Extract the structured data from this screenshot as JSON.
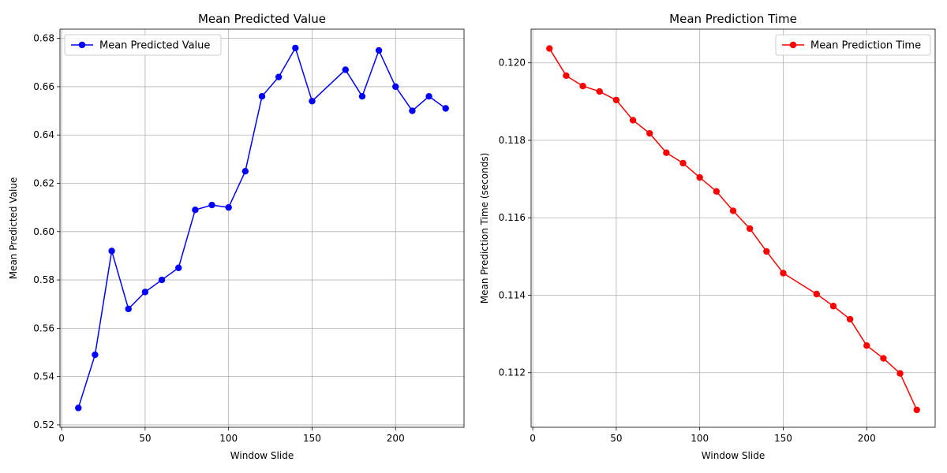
{
  "chart_data": [
    {
      "type": "line",
      "title": "Mean Predicted Value",
      "xlabel": "Window Slide",
      "ylabel": "Mean Predicted Value",
      "xlim": [
        -1,
        241
      ],
      "ylim": [
        0.519,
        0.6838
      ],
      "xticks": [
        0,
        50,
        100,
        150,
        200
      ],
      "yticks": [
        0.52,
        0.54,
        0.56,
        0.58,
        0.6,
        0.62,
        0.64,
        0.66,
        0.68
      ],
      "ytick_decimals": 2,
      "grid": true,
      "legend_position": "top-left",
      "series": [
        {
          "name": "Mean Predicted Value",
          "color": "#0000ff",
          "marker": "circle",
          "x": [
            10,
            20,
            30,
            40,
            50,
            60,
            70,
            80,
            90,
            100,
            110,
            120,
            130,
            140,
            150,
            170,
            180,
            190,
            200,
            210,
            220,
            230
          ],
          "y": [
            0.527,
            0.549,
            0.592,
            0.568,
            0.575,
            0.58,
            0.585,
            0.609,
            0.611,
            0.61,
            0.625,
            0.656,
            0.664,
            0.676,
            0.654,
            0.667,
            0.656,
            0.675,
            0.66,
            0.65,
            0.656,
            0.651
          ]
        }
      ]
    },
    {
      "type": "line",
      "title": "Mean Prediction Time",
      "xlabel": "Window Slide",
      "ylabel": "Mean Prediction Time (seconds)",
      "xlim": [
        -1,
        241
      ],
      "ylim": [
        0.11059,
        0.12087
      ],
      "xticks": [
        0,
        50,
        100,
        150,
        200
      ],
      "yticks": [
        0.112,
        0.114,
        0.116,
        0.118,
        0.12
      ],
      "ytick_decimals": 3,
      "grid": true,
      "legend_position": "top-right",
      "series": [
        {
          "name": "Mean Prediction Time",
          "color": "#ff0000",
          "marker": "circle",
          "x": [
            10,
            20,
            30,
            40,
            50,
            60,
            70,
            80,
            90,
            100,
            110,
            120,
            130,
            140,
            150,
            170,
            180,
            190,
            200,
            210,
            220,
            230
          ],
          "y": [
            0.12037,
            0.11967,
            0.1194,
            0.11926,
            0.11904,
            0.11852,
            0.11818,
            0.11768,
            0.11741,
            0.11704,
            0.11668,
            0.11618,
            0.11572,
            0.11513,
            0.11457,
            0.11403,
            0.11372,
            0.11338,
            0.1127,
            0.11237,
            0.11198,
            0.11104
          ]
        }
      ]
    }
  ]
}
